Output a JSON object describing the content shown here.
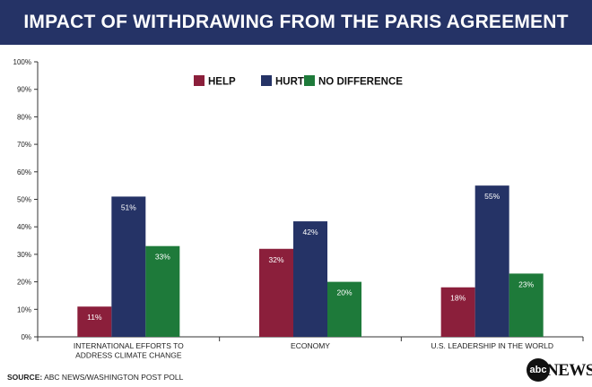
{
  "title": "IMPACT OF WITHDRAWING FROM THE PARIS AGREEMENT",
  "source": {
    "prefix": "SOURCE:",
    "text": " ABC NEWS/WASHINGTON POST POLL"
  },
  "logo": {
    "circle_text": "abc",
    "word": "NEWS"
  },
  "chart_data": {
    "type": "bar",
    "title": "IMPACT OF WITHDRAWING FROM THE PARIS AGREEMENT",
    "categories": [
      [
        "INTERNATIONAL EFFORTS TO",
        "ADDRESS CLIMATE CHANGE"
      ],
      [
        "ECONOMY"
      ],
      [
        "U.S. LEADERSHIP IN THE WORLD"
      ]
    ],
    "series": [
      {
        "name": "HELP",
        "values": [
          11,
          32,
          18
        ],
        "labels": [
          "11%",
          "32%",
          "18%"
        ],
        "color": "#8b1f3b"
      },
      {
        "name": "HURT",
        "values": [
          51,
          42,
          55
        ],
        "labels": [
          "51%",
          "42%",
          "55%"
        ],
        "color": "#253366"
      },
      {
        "name": "NO DIFFERENCE",
        "values": [
          33,
          20,
          23
        ],
        "labels": [
          "33%",
          "20%",
          "23%"
        ],
        "color": "#1e7a3a"
      }
    ],
    "ylim": [
      0,
      100
    ],
    "yticks": [
      "0%",
      "10%",
      "20%",
      "30%",
      "40%",
      "50%",
      "60%",
      "70%",
      "80%",
      "90%",
      "100%"
    ],
    "xlabel": "",
    "ylabel": "",
    "grid": false,
    "legend_position": "top-center"
  }
}
